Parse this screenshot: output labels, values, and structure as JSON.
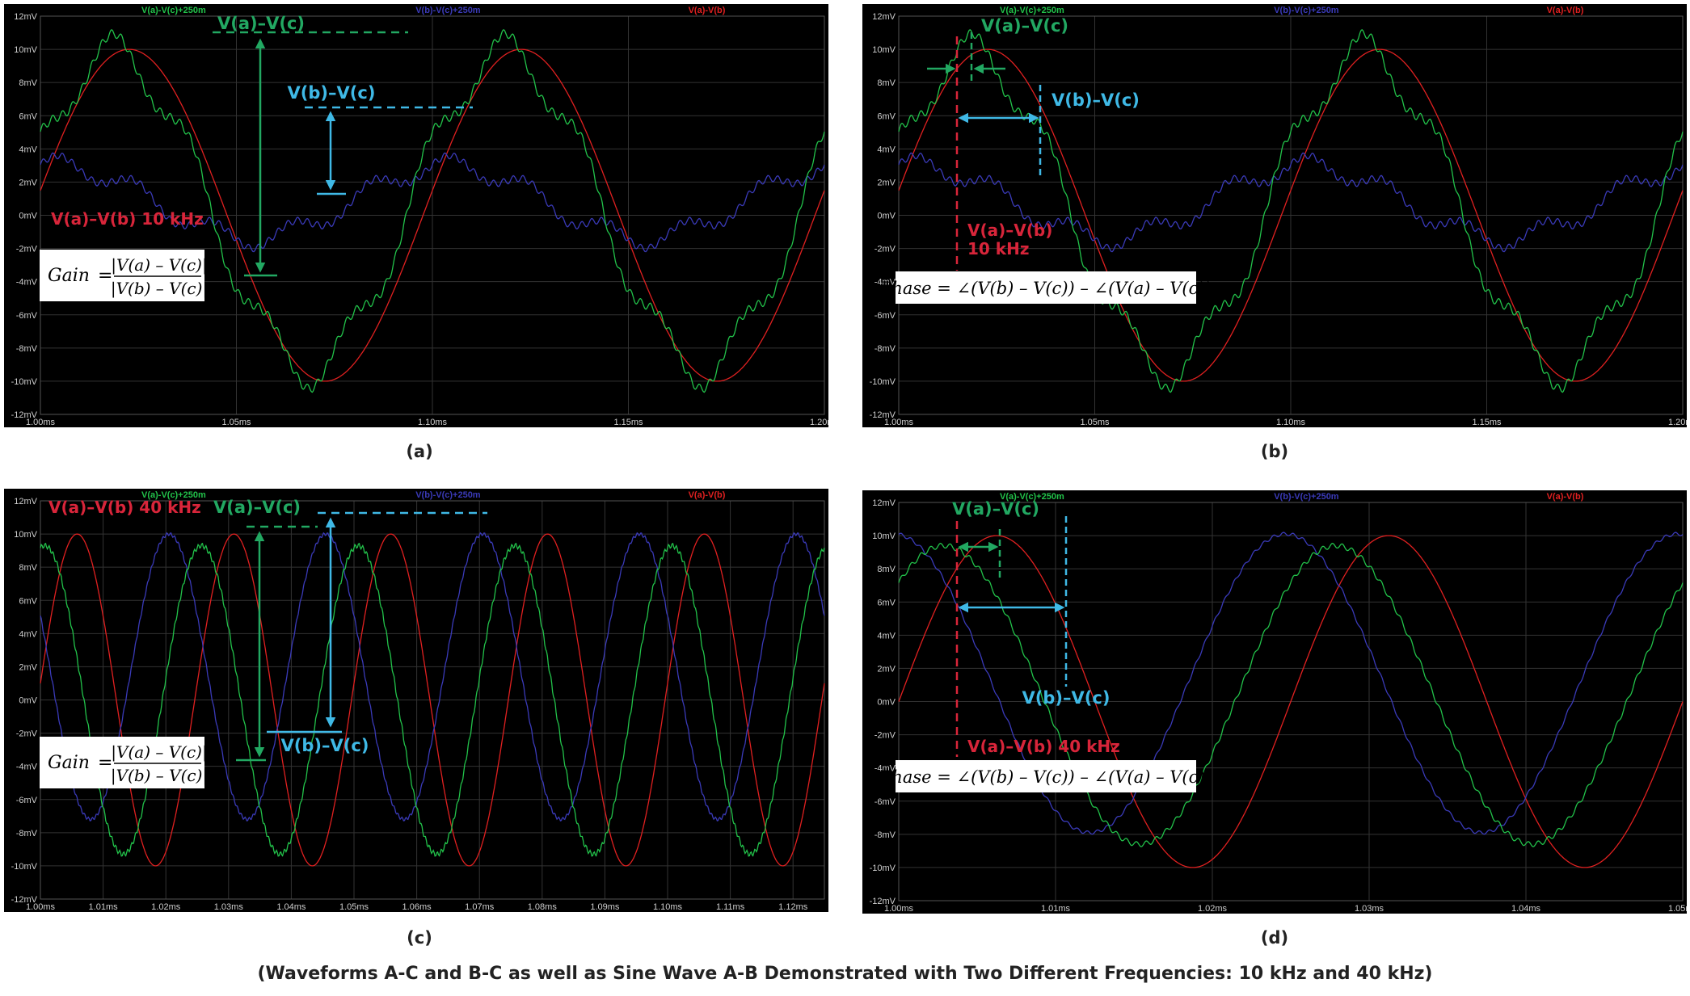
{
  "caption": "(Waveforms A-C and B-C as well as Sine Wave A-B Demonstrated with Two Different Frequencies: 10 kHz and 40 kHz)",
  "colors": {
    "background": "#000000",
    "grid": "#333333",
    "axis_text": "#cfcfcf",
    "v_ab": "#e02020",
    "v_ac": "#22c24a",
    "v_bc": "#3a3ab8",
    "anno_red": "#d8253a",
    "anno_green": "#22a862",
    "anno_cyan": "#3fb9e6"
  },
  "legend": {
    "v_ac": "V(a)-V(c)+250m",
    "v_bc": "V(b)-V(c)+250m",
    "v_ab": "V(a)-V(b)"
  },
  "chart_data": [
    {
      "id": "a",
      "panel_label": "(a)",
      "type": "line",
      "x_ticks": [
        "1.00ms",
        "1.05ms",
        "1.10ms",
        "1.15ms",
        "1.20ms"
      ],
      "y_ticks": [
        "12mV",
        "10mV",
        "8mV",
        "6mV",
        "4mV",
        "2mV",
        "0mV",
        "-2mV",
        "-4mV",
        "-6mV",
        "-8mV",
        "-10mV",
        "-12mV"
      ],
      "xlim": [
        1.0,
        1.2
      ],
      "ylim": [
        -12,
        12
      ],
      "x_unit": "ms",
      "y_unit": "mV",
      "grid": true,
      "series": [
        {
          "name": "V(a)-V(c)+250m",
          "key": "v_ac",
          "color": "#22c24a",
          "f_khz": 10,
          "amp": 9.5,
          "phase": 0.4,
          "offset": 0.25,
          "harm": 1.2,
          "ripple": 0.25
        },
        {
          "name": "V(b)-V(c)+250m",
          "key": "v_bc",
          "color": "#3a3ab8",
          "f_khz": 10,
          "amp": 2.2,
          "phase": 1.3,
          "offset": 0.8,
          "harm": 0.6,
          "ripple": 0.2
        },
        {
          "name": "V(a)-V(b)",
          "key": "v_ab",
          "color": "#e02020",
          "f_khz": 10,
          "amp": 10,
          "phase": 0.15,
          "offset": 0,
          "harm": 0,
          "ripple": 0
        }
      ],
      "annotations": {
        "freq_label": "V(a)–V(b) 10 kHz",
        "v_ac_label": "V(a)–V(c)",
        "v_bc_label": "V(b)–V(c)",
        "formula_lhs": "Gain",
        "formula_num": "|V(a) – V(c)|",
        "formula_den": "|V(b) – V(c)|"
      }
    },
    {
      "id": "b",
      "panel_label": "(b)",
      "type": "line",
      "x_ticks": [
        "1.00ms",
        "1.05ms",
        "1.10ms",
        "1.15ms",
        "1.20ms"
      ],
      "y_ticks": [
        "12mV",
        "10mV",
        "8mV",
        "6mV",
        "4mV",
        "2mV",
        "0mV",
        "-2mV",
        "-4mV",
        "-6mV",
        "-8mV",
        "-10mV",
        "-12mV"
      ],
      "xlim": [
        1.0,
        1.2
      ],
      "ylim": [
        -12,
        12
      ],
      "x_unit": "ms",
      "y_unit": "mV",
      "grid": true,
      "series": [
        {
          "name": "V(a)-V(c)+250m",
          "key": "v_ac",
          "color": "#22c24a",
          "f_khz": 10,
          "amp": 9.5,
          "phase": 0.4,
          "offset": 0.25,
          "harm": 1.2,
          "ripple": 0.25
        },
        {
          "name": "V(b)-V(c)+250m",
          "key": "v_bc",
          "color": "#3a3ab8",
          "f_khz": 10,
          "amp": 2.2,
          "phase": 1.3,
          "offset": 0.8,
          "harm": 0.6,
          "ripple": 0.2
        },
        {
          "name": "V(a)-V(b)",
          "key": "v_ab",
          "color": "#e02020",
          "f_khz": 10,
          "amp": 10,
          "phase": 0.15,
          "offset": 0,
          "harm": 0,
          "ripple": 0
        }
      ],
      "annotations": {
        "freq_label_1": "V(a)–V(b)",
        "freq_label_2": "10 kHz",
        "v_ac_label": "V(a)–V(c)",
        "v_bc_label": "V(b)–V(c)",
        "formula": "Phase = ∠(V(b) – V(c)) – ∠(V(a) – V(c))"
      }
    },
    {
      "id": "c",
      "panel_label": "(c)",
      "type": "line",
      "x_ticks": [
        "1.00ms",
        "1.01ms",
        "1.02ms",
        "1.03ms",
        "1.04ms",
        "1.05ms",
        "1.06ms",
        "1.07ms",
        "1.08ms",
        "1.09ms",
        "1.10ms",
        "1.11ms",
        "1.12ms"
      ],
      "y_ticks": [
        "12mV",
        "10mV",
        "8mV",
        "6mV",
        "4mV",
        "2mV",
        "0mV",
        "-2mV",
        "-4mV",
        "-6mV",
        "-8mV",
        "-10mV",
        "-12mV"
      ],
      "xlim": [
        1.0,
        1.125
      ],
      "ylim": [
        -12,
        12
      ],
      "x_unit": "ms",
      "y_unit": "mV",
      "grid": true,
      "series": [
        {
          "name": "V(a)-V(c)+250m",
          "key": "v_ac",
          "color": "#22c24a",
          "f_khz": 40,
          "amp": 9.3,
          "phase": 1.4,
          "offset": 0,
          "harm": 0,
          "ripple": 0.15
        },
        {
          "name": "V(b)-V(c)+250m",
          "key": "v_bc",
          "color": "#3a3ab8",
          "f_khz": 40,
          "amp": 8.6,
          "phase": 2.7,
          "offset": 1.4,
          "harm": 0,
          "ripple": 0.1
        },
        {
          "name": "V(a)-V(b)",
          "key": "v_ab",
          "color": "#e02020",
          "f_khz": 40,
          "amp": 10,
          "phase": 0.1,
          "offset": 0,
          "harm": 0,
          "ripple": 0
        }
      ],
      "annotations": {
        "freq_label": "V(a)–V(b) 40 kHz",
        "v_ac_label": "V(a)–V(c)",
        "v_bc_label": "V(b)–V(c)",
        "formula_lhs": "Gain",
        "formula_num": "|V(a) – V(c)|",
        "formula_den": "|V(b) – V(c)|"
      }
    },
    {
      "id": "d",
      "panel_label": "(d)",
      "type": "line",
      "x_ticks": [
        "1.00ms",
        "1.01ms",
        "1.02ms",
        "1.03ms",
        "1.04ms",
        "1.05ms"
      ],
      "y_ticks": [
        "12mV",
        "10mV",
        "8mV",
        "6mV",
        "4mV",
        "2mV",
        "0mV",
        "-2mV",
        "-4mV",
        "-6mV",
        "-8mV",
        "-10mV",
        "-12mV"
      ],
      "xlim": [
        1.0,
        1.05
      ],
      "ylim": [
        -12,
        12
      ],
      "x_unit": "ms",
      "y_unit": "mV",
      "grid": true,
      "series": [
        {
          "name": "V(a)-V(c)+250m",
          "key": "v_ac",
          "color": "#22c24a",
          "f_khz": 40,
          "amp": 9.0,
          "phase": 0.85,
          "offset": 0.4,
          "harm": 0,
          "ripple": 0.15
        },
        {
          "name": "V(b)-V(c)+250m",
          "key": "v_bc",
          "color": "#3a3ab8",
          "f_khz": 40,
          "amp": 9.0,
          "phase": 1.65,
          "offset": 1.1,
          "harm": 0,
          "ripple": 0.1
        },
        {
          "name": "V(a)-V(b)",
          "key": "v_ab",
          "color": "#e02020",
          "f_khz": 40,
          "amp": 10,
          "phase": 0.0,
          "offset": 0,
          "harm": 0,
          "ripple": 0
        }
      ],
      "annotations": {
        "freq_label": "V(a)–V(b) 40 kHz",
        "v_ac_label": "V(a)–V(c)",
        "v_bc_label": "V(b)–V(c)",
        "formula": "Phase = ∠(V(b) – V(c)) – ∠(V(a) – V(c))"
      }
    }
  ]
}
